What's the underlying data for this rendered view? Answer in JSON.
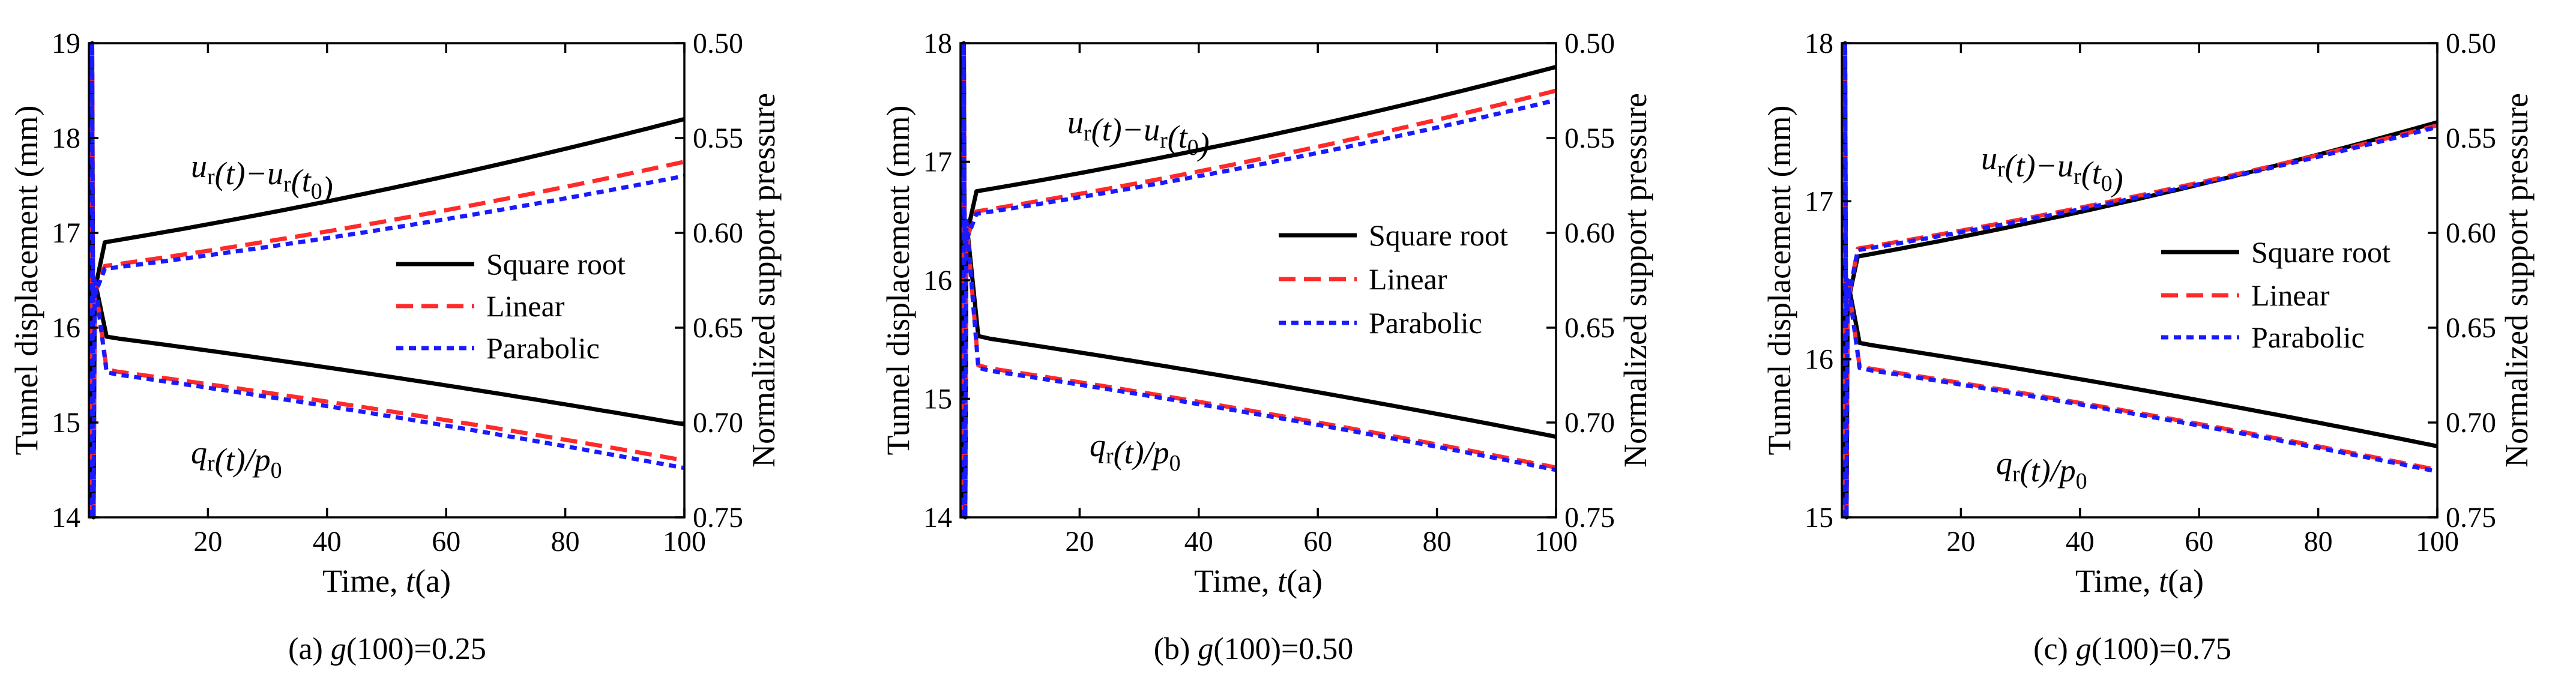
{
  "colors": {
    "square_root": "#000000",
    "linear": "#ff2a2a",
    "parabolic": "#1a1aff"
  },
  "chart_data": [
    {
      "type": "line",
      "caption_prefix": "(a) ",
      "caption_var": "g",
      "caption_rest": "(100)=0.25",
      "xlabel_text": "Time, ",
      "xlabel_var": "t",
      "xlabel_unit": "(a)",
      "ylabel_left": "Tunnel displacement (mm)",
      "ylabel_right": "Normalized support pressure",
      "xlim": [
        0,
        100
      ],
      "ylim_left": [
        14,
        19
      ],
      "ylim_right": [
        0.75,
        0.5
      ],
      "xticks": [
        "20",
        "40",
        "60",
        "80",
        "100"
      ],
      "yticks_left": [
        "14",
        "15",
        "16",
        "17",
        "18",
        "19"
      ],
      "yticks_right": [
        "0.50",
        "0.55",
        "0.60",
        "0.65",
        "0.70",
        "0.75"
      ],
      "annotation_u": "ur(t)−ur(t0)",
      "annotation_q": "qr(t)/p0",
      "legend": [
        "Square root",
        "Linear",
        "Parabolic"
      ],
      "legend_position": "center-right",
      "series": [
        {
          "name": "Square root",
          "u": {
            "plateau": 16.9,
            "end": 18.2
          },
          "q": {
            "plateau": 15.9,
            "end": 14.98
          }
        },
        {
          "name": "Linear",
          "u": {
            "plateau": 16.65,
            "end": 17.75
          },
          "q": {
            "plateau": 15.55,
            "end": 14.6
          }
        },
        {
          "name": "Parabolic",
          "u": {
            "plateau": 16.62,
            "end": 17.6
          },
          "q": {
            "plateau": 15.52,
            "end": 14.52
          }
        }
      ]
    },
    {
      "type": "line",
      "caption_prefix": "(b) ",
      "caption_var": "g",
      "caption_rest": "(100)=0.50",
      "xlabel_text": "Time, ",
      "xlabel_var": "t",
      "xlabel_unit": "(a)",
      "ylabel_left": "Tunnel displacement (mm)",
      "ylabel_right": "Normalized support pressure",
      "xlim": [
        0,
        100
      ],
      "ylim_left": [
        14,
        18
      ],
      "ylim_right": [
        0.75,
        0.5
      ],
      "xticks": [
        "20",
        "40",
        "60",
        "80",
        "100"
      ],
      "yticks_left": [
        "14",
        "15",
        "16",
        "17",
        "18"
      ],
      "yticks_right": [
        "0.50",
        "0.55",
        "0.60",
        "0.65",
        "0.70",
        "0.75"
      ],
      "annotation_u": "ur(t)−ur(t0)",
      "annotation_q": "qr(t)/p0",
      "legend": [
        "Square root",
        "Linear",
        "Parabolic"
      ],
      "legend_position": "center-right",
      "series": [
        {
          "name": "Square root",
          "u": {
            "plateau": 16.75,
            "end": 17.8
          },
          "q": {
            "plateau": 15.52,
            "end": 14.68
          }
        },
        {
          "name": "Linear",
          "u": {
            "plateau": 16.58,
            "end": 17.6
          },
          "q": {
            "plateau": 15.27,
            "end": 14.42
          }
        },
        {
          "name": "Parabolic",
          "u": {
            "plateau": 16.56,
            "end": 17.52
          },
          "q": {
            "plateau": 15.25,
            "end": 14.4
          }
        }
      ]
    },
    {
      "type": "line",
      "caption_prefix": "(c) ",
      "caption_var": "g",
      "caption_rest": "(100)=0.75",
      "xlabel_text": "Time, ",
      "xlabel_var": "t",
      "xlabel_unit": "(a)",
      "ylabel_left": "Tunnel displacement (mm)",
      "ylabel_right": "Normalized support pressure",
      "xlim": [
        0,
        100
      ],
      "ylim_left": [
        15,
        18
      ],
      "ylim_right": [
        0.75,
        0.5
      ],
      "xticks": [
        "20",
        "40",
        "60",
        "80",
        "100"
      ],
      "yticks_left": [
        "15",
        "16",
        "17",
        "18"
      ],
      "yticks_right": [
        "0.50",
        "0.55",
        "0.60",
        "0.65",
        "0.70",
        "0.75"
      ],
      "annotation_u": "ur(t)−ur(t0)",
      "annotation_q": "qr(t)/p0",
      "legend": [
        "Square root",
        "Linear",
        "Parabolic"
      ],
      "legend_position": "center-right",
      "series": [
        {
          "name": "Square root",
          "u": {
            "plateau": 16.65,
            "end": 17.5
          },
          "q": {
            "plateau": 16.1,
            "end": 15.45
          }
        },
        {
          "name": "Linear",
          "u": {
            "plateau": 16.7,
            "end": 17.48
          },
          "q": {
            "plateau": 15.95,
            "end": 15.3
          }
        },
        {
          "name": "Parabolic",
          "u": {
            "plateau": 16.69,
            "end": 17.47
          },
          "q": {
            "plateau": 15.94,
            "end": 15.29
          }
        }
      ]
    }
  ]
}
